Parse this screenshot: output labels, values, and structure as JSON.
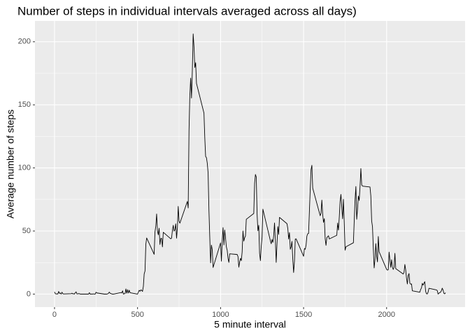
{
  "chart_data": {
    "type": "line",
    "title": "Number of steps in individual intervals averaged across all days)",
    "xlabel": "5 minute interval",
    "ylabel": "Average number of steps",
    "x": [
      0,
      5,
      10,
      15,
      20,
      25,
      30,
      35,
      40,
      45,
      50,
      55,
      100,
      105,
      110,
      115,
      120,
      125,
      130,
      135,
      140,
      145,
      150,
      155,
      200,
      205,
      210,
      215,
      220,
      225,
      230,
      235,
      240,
      245,
      250,
      255,
      300,
      305,
      310,
      315,
      320,
      325,
      330,
      335,
      340,
      345,
      350,
      355,
      400,
      405,
      410,
      415,
      420,
      425,
      430,
      435,
      440,
      445,
      450,
      455,
      500,
      505,
      510,
      515,
      520,
      525,
      530,
      535,
      540,
      545,
      550,
      555,
      600,
      605,
      610,
      615,
      620,
      625,
      630,
      635,
      640,
      645,
      650,
      655,
      700,
      705,
      710,
      715,
      720,
      725,
      730,
      735,
      740,
      745,
      750,
      755,
      800,
      805,
      810,
      815,
      820,
      825,
      830,
      835,
      840,
      845,
      850,
      855,
      900,
      905,
      910,
      915,
      920,
      925,
      930,
      935,
      940,
      945,
      950,
      955,
      1000,
      1005,
      1010,
      1015,
      1020,
      1025,
      1030,
      1035,
      1040,
      1045,
      1050,
      1055,
      1100,
      1105,
      1110,
      1115,
      1120,
      1125,
      1130,
      1135,
      1140,
      1145,
      1150,
      1155,
      1200,
      1205,
      1210,
      1215,
      1220,
      1225,
      1230,
      1235,
      1240,
      1245,
      1250,
      1255,
      1300,
      1305,
      1310,
      1315,
      1320,
      1325,
      1330,
      1335,
      1340,
      1345,
      1350,
      1355,
      1400,
      1405,
      1410,
      1415,
      1420,
      1425,
      1430,
      1435,
      1440,
      1445,
      1450,
      1455,
      1500,
      1505,
      1510,
      1515,
      1520,
      1525,
      1530,
      1535,
      1540,
      1545,
      1550,
      1555,
      1600,
      1605,
      1610,
      1615,
      1620,
      1625,
      1630,
      1635,
      1640,
      1645,
      1650,
      1655,
      1700,
      1705,
      1710,
      1715,
      1720,
      1725,
      1730,
      1735,
      1740,
      1745,
      1750,
      1755,
      1800,
      1805,
      1810,
      1815,
      1820,
      1825,
      1830,
      1835,
      1840,
      1845,
      1850,
      1855,
      1900,
      1905,
      1910,
      1915,
      1920,
      1925,
      1930,
      1935,
      1940,
      1945,
      1950,
      1955,
      2000,
      2005,
      2010,
      2015,
      2020,
      2025,
      2030,
      2035,
      2040,
      2045,
      2050,
      2055,
      2100,
      2105,
      2110,
      2115,
      2120,
      2125,
      2130,
      2135,
      2140,
      2145,
      2150,
      2155,
      2200,
      2205,
      2210,
      2215,
      2220,
      2225,
      2230,
      2235,
      2240,
      2245,
      2250,
      2255,
      2300,
      2305,
      2310,
      2315,
      2320,
      2325,
      2330,
      2335,
      2340,
      2345,
      2350,
      2355
    ],
    "series": [
      {
        "name": "steps",
        "color": "#000000",
        "values": [
          1.7,
          0.3,
          0.1,
          0.2,
          0.1,
          2.1,
          0.5,
          0.9,
          0,
          1.5,
          0.3,
          0.1,
          0.3,
          0.7,
          0.2,
          0.3,
          0,
          1.1,
          1.8,
          0.2,
          0.2,
          0.4,
          0.3,
          0,
          0,
          0,
          1.1,
          0,
          0,
          0.1,
          0,
          0.2,
          0,
          0,
          1.5,
          0.9,
          0,
          0,
          0,
          0,
          0.2,
          0.6,
          1.6,
          0.6,
          0.5,
          0.1,
          0,
          0,
          1.2,
          0.9,
          2.6,
          0,
          0.3,
          0.4,
          4.1,
          0.7,
          3.5,
          0.8,
          3.1,
          1.1,
          0,
          1.6,
          3,
          2.2,
          3.3,
          3,
          2.1,
          6.1,
          16,
          18.3,
          39.5,
          44.5,
          31.5,
          49.3,
          53.8,
          63.5,
          50,
          47,
          52.2,
          39.3,
          44,
          44.2,
          37.4,
          49,
          43.8,
          44.4,
          50.5,
          54.5,
          49.9,
          50.9,
          55.7,
          44.3,
          52.3,
          69.5,
          57.8,
          56.2,
          73.4,
          68.2,
          129.4,
          157.5,
          171.2,
          155.4,
          177.3,
          206.2,
          195.9,
          179.6,
          183.4,
          167,
          143.5,
          124,
          109.1,
          108.1,
          103.7,
          95.9,
          66.2,
          45.2,
          24.8,
          38.8,
          35,
          21.1,
          40.6,
          26.1,
          42.4,
          52.7,
          38.9,
          50.8,
          44.3,
          37.4,
          34.7,
          28.3,
          25.1,
          31.9,
          31.4,
          29.7,
          21.3,
          25.5,
          28.4,
          26.5,
          33.4,
          50,
          42,
          44.6,
          46,
          59.3,
          63.9,
          87.7,
          94.8,
          92.8,
          63.4,
          50.2,
          54.5,
          32.4,
          26.5,
          37.7,
          45.1,
          67.3,
          42.3,
          39.9,
          43.3,
          41,
          46.2,
          56.4,
          42.8,
          25.1,
          40,
          53.5,
          47.3,
          60.8,
          55.8,
          52,
          43.6,
          48.7,
          35.5,
          37.5,
          41.8,
          27.5,
          17.1,
          26.1,
          43.6,
          43.8,
          30,
          36.1,
          35.5,
          38.8,
          46,
          47.8,
          48.1,
          65.3,
          82.9,
          98.7,
          102.1,
          84,
          62.1,
          64.1,
          74.5,
          63.2,
          56.9,
          59.8,
          43.9,
          38.6,
          44.7,
          45.5,
          46.2,
          43.7,
          46.6,
          56.3,
          50.7,
          61.2,
          73.4,
          79,
          68.9,
          59.7,
          75.1,
          56.5,
          34.8,
          37.5,
          40.7,
          58,
          74.7,
          85.3,
          59.3,
          67.8,
          77.7,
          74.2,
          85.3,
          99.5,
          86.6,
          85.6,
          84.9,
          77.8,
          58,
          53.4,
          36.3,
          20.7,
          27.4,
          40,
          30.2,
          25.5,
          45.7,
          33.5,
          19.6,
          19,
          19.3,
          33.3,
          26.8,
          21.2,
          27.3,
          21.3,
          19.5,
          21.3,
          32.3,
          20.2,
          15.9,
          17.2,
          23.5,
          19.2,
          12.5,
          8,
          14.7,
          16.3,
          8.7,
          7.8,
          8.1,
          2.6,
          1.5,
          3.7,
          4.8,
          8.5,
          7.1,
          8.7,
          9.8,
          2.2,
          0.3,
          0.1,
          1.6,
          4.6,
          3.3,
          2.8,
          0,
          0.8,
          1,
          1.6,
          2.6,
          4.7,
          3.3,
          0.6,
          0.2,
          1.1
        ]
      }
    ],
    "xlim": [
      -117.75,
      2472.75
    ],
    "xticks": [
      0,
      500,
      1000,
      1500,
      2000
    ],
    "ylim": [
      -10.3,
      216.5
    ],
    "yticks": [
      0,
      50,
      100,
      150,
      200
    ],
    "grid": true
  }
}
